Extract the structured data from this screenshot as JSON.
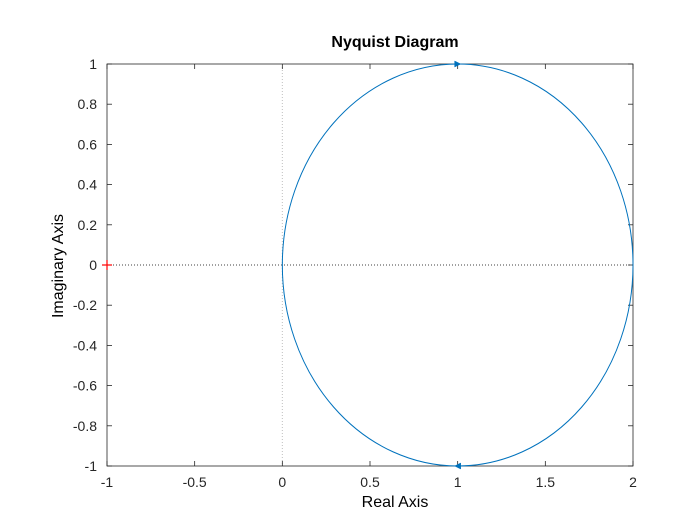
{
  "chart_data": {
    "type": "line",
    "title": "Nyquist Diagram",
    "xlabel": "Real Axis",
    "ylabel": "Imaginary Axis",
    "xlim": [
      -1,
      2
    ],
    "ylim": [
      -1,
      1
    ],
    "xticks": [
      -1,
      -0.5,
      0,
      0.5,
      1,
      1.5,
      2
    ],
    "xtick_labels": [
      "-1",
      "-0.5",
      "0",
      "0.5",
      "1",
      "1.5",
      "2"
    ],
    "yticks": [
      -1,
      -0.8,
      -0.6,
      -0.4,
      -0.2,
      0,
      0.2,
      0.4,
      0.6,
      0.8,
      1
    ],
    "ytick_labels": [
      "-1",
      "-0.8",
      "-0.6",
      "-0.4",
      "-0.2",
      "0",
      "0.2",
      "0.4",
      "0.6",
      "0.8",
      "1"
    ],
    "grid": false,
    "series": [
      {
        "color": "#0072bd",
        "shape": "circle",
        "center": [
          1,
          0
        ],
        "radius": 1,
        "x": [
          2,
          1.866,
          1.5,
          1,
          0.5,
          0.134,
          0,
          0.134,
          0.5,
          1,
          1.5,
          1.866,
          2
        ],
        "y": [
          0,
          0.5,
          0.866,
          1,
          0.866,
          0.5,
          0,
          -0.5,
          -0.866,
          -1,
          -0.866,
          -0.5,
          0
        ]
      }
    ],
    "arrows": [
      {
        "x": 1,
        "y": 1,
        "color": "#0072bd"
      },
      {
        "x": 1,
        "y": -1,
        "color": "#0072bd"
      }
    ],
    "critical_point": {
      "x": -1,
      "y": 0,
      "marker": "+",
      "color": "#ff0000"
    },
    "reference_lines": [
      {
        "orientation": "horizontal",
        "value": 0,
        "style": "dotted",
        "color": "#404040"
      },
      {
        "orientation": "vertical",
        "value": 0,
        "style": "dotted",
        "color": "#c0c0c0"
      }
    ],
    "colors": {
      "axes": "#262626",
      "curve": "#0072bd",
      "critical": "#ff0000"
    }
  }
}
